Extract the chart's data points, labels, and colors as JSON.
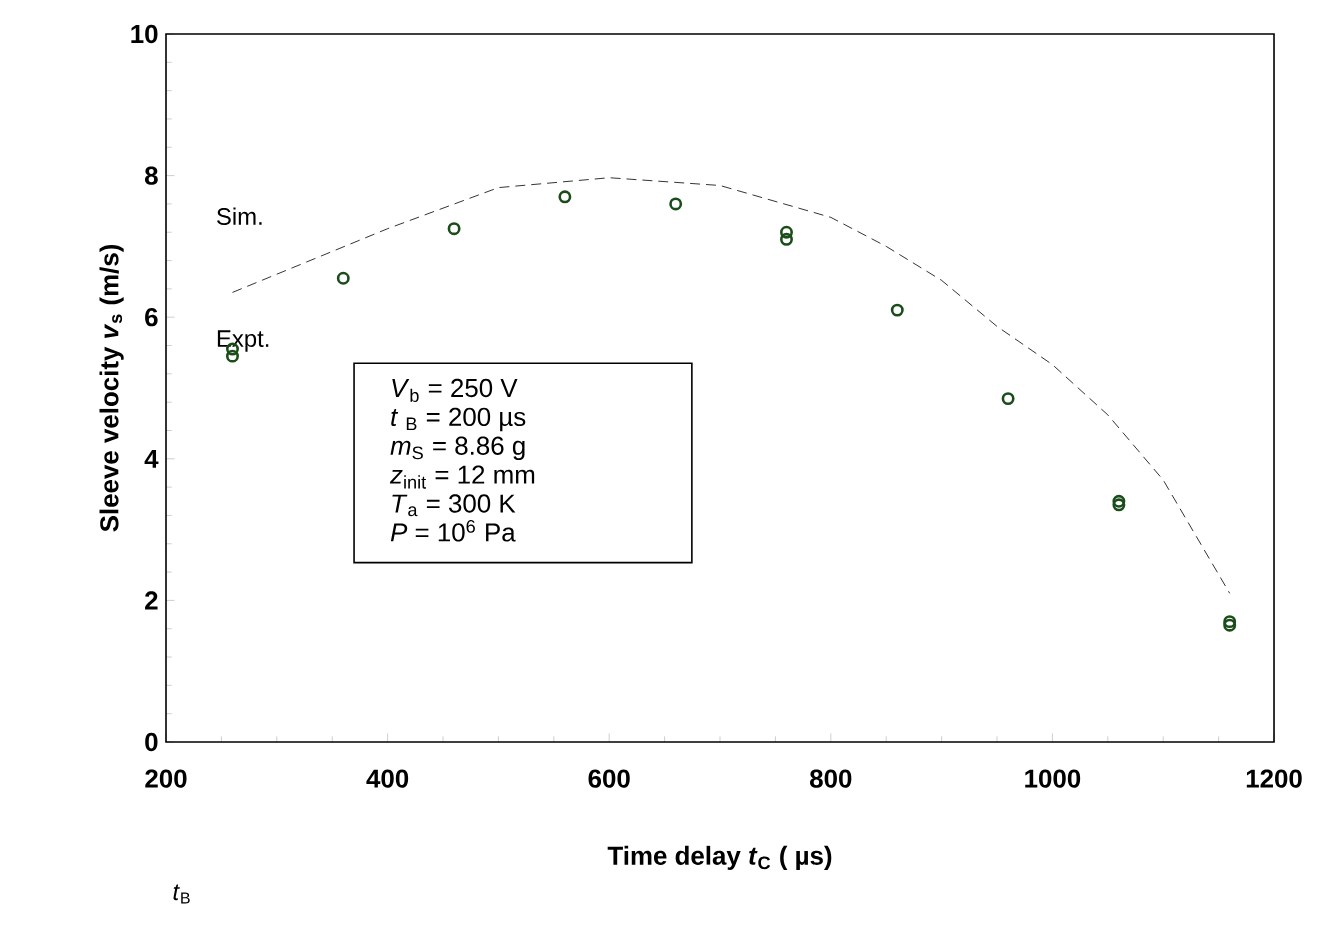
{
  "chart_data": {
    "type": "scatter",
    "xlabel": "Time delay *t*$_{C}$ ( µs)",
    "ylabel": "Sleeve velocity *v*$_{s}$ (m/s)",
    "xlim": [
      200,
      1200
    ],
    "xticks": [
      200,
      400,
      600,
      800,
      1000,
      1200
    ],
    "ylim": [
      0,
      10
    ],
    "yticks": [
      0,
      2,
      4,
      6,
      8,
      10
    ],
    "grid": false,
    "series": [
      {
        "name": "Sim.",
        "type": "line",
        "line_style": "dashed",
        "marker": "none",
        "color": "#000000",
        "x": [
          260,
          400,
          500,
          600,
          700,
          800,
          850,
          900,
          950,
          1000,
          1050,
          1100,
          1160
        ],
        "values": [
          6.35,
          7.25,
          7.83,
          7.97,
          7.86,
          7.41,
          7.0,
          6.52,
          5.87,
          5.33,
          4.62,
          3.7,
          2.1
        ]
      },
      {
        "name": "Expt.",
        "marker": "circle",
        "color": "#1a4d1a",
        "x": [
          260,
          260,
          360,
          460,
          560,
          660,
          760,
          760,
          860,
          960,
          1060,
          1060,
          1160,
          1160
        ],
        "values": [
          5.55,
          5.45,
          6.55,
          7.25,
          7.7,
          7.6,
          7.2,
          7.1,
          6.1,
          4.85,
          3.4,
          3.35,
          1.7,
          1.65
        ]
      }
    ],
    "annotations": [
      "*V*$_{b}$ = 250 V",
      "*t* $_{B}$ = 200 µs",
      "*m*$_{S}$ = 8.86 g",
      "*z*$_{init}$ = 12 mm",
      "*T*$_{a}$ = 300 K",
      "*P* = 10$^{6}$ Pa",
      "*t*$_{B}$"
    ]
  }
}
